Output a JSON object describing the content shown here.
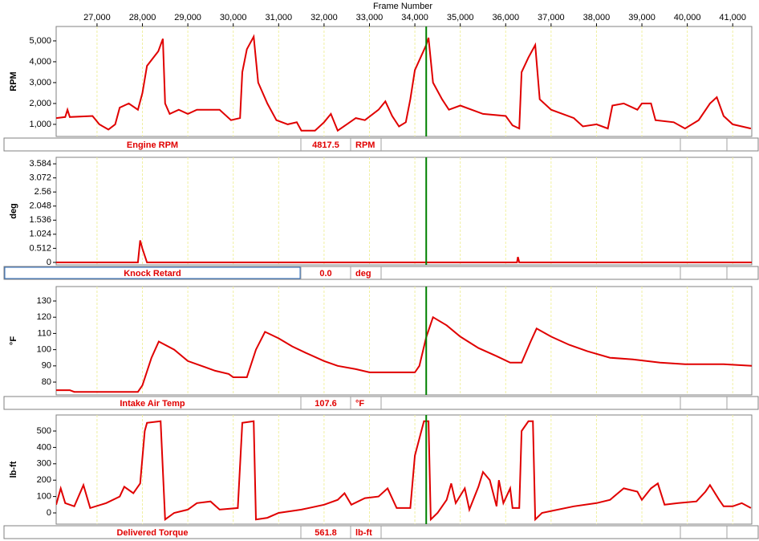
{
  "chart_data": [
    {
      "type": "line",
      "title": "Frame Number",
      "ylabel": "RPM",
      "cursor": 34250,
      "xlim": [
        26100,
        41420
      ],
      "xticks": [
        {
          "value": 27000,
          "label": "27,000"
        },
        {
          "value": 28000,
          "label": "28,000"
        },
        {
          "value": 29000,
          "label": "29,000"
        },
        {
          "value": 30000,
          "label": "30,000"
        },
        {
          "value": 31000,
          "label": "31,000"
        },
        {
          "value": 32000,
          "label": "32,000"
        },
        {
          "value": 33000,
          "label": "33,000"
        },
        {
          "value": 34000,
          "label": "34,000"
        },
        {
          "value": 35000,
          "label": "35,000"
        },
        {
          "value": 36000,
          "label": "36,000"
        },
        {
          "value": 37000,
          "label": "37,000"
        },
        {
          "value": 38000,
          "label": "38,000"
        },
        {
          "value": 39000,
          "label": "39,000"
        },
        {
          "value": 40000,
          "label": "40,000"
        },
        {
          "value": 41000,
          "label": "41,000"
        }
      ],
      "ylim": [
        420,
        5690
      ],
      "yticks": [
        {
          "value": 1000,
          "label": "1,000"
        },
        {
          "value": 2000,
          "label": "2,000"
        },
        {
          "value": 3000,
          "label": "3,000"
        },
        {
          "value": 4000,
          "label": "4,000"
        },
        {
          "value": 5000,
          "label": "5,000"
        }
      ],
      "x": [
        26100,
        26300,
        26350,
        26400,
        26900,
        27050,
        27250,
        27400,
        27500,
        27700,
        27900,
        28000,
        28100,
        28350,
        28450,
        28500,
        28600,
        28800,
        29000,
        29200,
        29700,
        29950,
        30150,
        30200,
        30300,
        30450,
        30550,
        30750,
        30950,
        31200,
        31400,
        31500,
        31800,
        32000,
        32150,
        32300,
        32500,
        32700,
        32900,
        33200,
        33350,
        33500,
        33650,
        33800,
        33900,
        34000,
        34250,
        34300,
        34400,
        34600,
        34750,
        35000,
        35500,
        36000,
        36150,
        36300,
        36350,
        36500,
        36650,
        36750,
        37000,
        37500,
        37700,
        38000,
        38250,
        38350,
        38600,
        38900,
        39000,
        39200,
        39300,
        39700,
        39950,
        40250,
        40500,
        40650,
        40800,
        41000,
        41200,
        41400
      ],
      "series": [
        {
          "name": "Engine RPM",
          "color": "#e00000",
          "readout": "4817.5",
          "values": [
            1300,
            1350,
            1700,
            1350,
            1400,
            1000,
            750,
            1000,
            1800,
            2000,
            1700,
            2500,
            3800,
            4500,
            5100,
            2000,
            1500,
            1700,
            1500,
            1700,
            1700,
            1200,
            1300,
            3500,
            4600,
            5200,
            3000,
            2000,
            1200,
            1000,
            1100,
            700,
            700,
            1100,
            1500,
            700,
            1000,
            1300,
            1200,
            1700,
            2100,
            1400,
            900,
            1100,
            2200,
            3600,
            4800,
            5150,
            3000,
            2200,
            1700,
            1900,
            1500,
            1400,
            950,
            800,
            3500,
            4200,
            4800,
            2200,
            1700,
            1300,
            900,
            1000,
            800,
            1900,
            2000,
            1700,
            2000,
            2000,
            1200,
            1100,
            800,
            1200,
            2000,
            2300,
            1400,
            1000,
            900,
            800
          ]
        }
      ]
    },
    {
      "type": "line",
      "ylabel": "deg",
      "cursor": 34250,
      "xlim": [
        26100,
        41420
      ],
      "ylim": [
        -0.09,
        3.82
      ],
      "yticks": [
        0,
        0.512,
        1.024,
        1.536,
        2.048,
        2.56,
        3.072,
        3.584
      ],
      "x": [
        26100,
        27900,
        27950,
        28000,
        28100,
        36250,
        36270,
        36300,
        41420
      ],
      "series": [
        {
          "name": "Knock Retard",
          "color": "#e00000",
          "readout": "0.0",
          "values": [
            0,
            0,
            0.8,
            0.5,
            0,
            0,
            0.2,
            0,
            0
          ]
        }
      ]
    },
    {
      "type": "line",
      "ylabel": "°F",
      "cursor": 34250,
      "xlim": [
        26100,
        41420
      ],
      "ylim": [
        72.1,
        138.9
      ],
      "yticks": [
        80,
        90,
        100,
        110,
        120,
        130
      ],
      "x": [
        26100,
        26400,
        26500,
        27900,
        28000,
        28200,
        28360,
        28700,
        29000,
        29300,
        29600,
        29900,
        30000,
        30300,
        30500,
        30700,
        31000,
        31300,
        31600,
        32000,
        32300,
        32700,
        33000,
        34000,
        34100,
        34250,
        34400,
        34700,
        35000,
        35400,
        35800,
        36100,
        36350,
        36550,
        36680,
        37000,
        37400,
        37800,
        38300,
        38800,
        39400,
        39950,
        40800,
        41420
      ],
      "series": [
        {
          "name": "Intake Air Temp",
          "color": "#e00000",
          "readout": "107.6",
          "values": [
            75,
            75,
            74,
            74,
            78,
            95,
            105,
            100,
            93,
            90,
            87,
            85,
            83,
            83,
            100,
            111,
            107,
            102,
            98,
            93,
            90,
            88,
            86,
            86,
            90,
            107.6,
            120,
            115,
            108,
            101,
            96,
            92,
            92,
            105,
            113,
            108,
            103,
            99,
            95,
            94,
            92,
            91,
            91,
            90
          ]
        }
      ]
    },
    {
      "type": "line",
      "ylabel": "lb-ft",
      "cursor": 34250,
      "xlim": [
        26100,
        41420
      ],
      "ylim": [
        -68.6,
        598
      ],
      "yticks": [
        0,
        100,
        200,
        300,
        400,
        500
      ],
      "x": [
        26100,
        26200,
        26300,
        26500,
        26700,
        26850,
        27200,
        27500,
        27600,
        27800,
        27950,
        28050,
        28100,
        28400,
        28500,
        28700,
        29000,
        29200,
        29500,
        29700,
        30100,
        30200,
        30450,
        30500,
        30750,
        31000,
        31500,
        32000,
        32300,
        32450,
        32600,
        32900,
        33200,
        33400,
        33600,
        33900,
        34000,
        34200,
        34300,
        34350,
        34500,
        34700,
        34800,
        34900,
        35100,
        35200,
        35400,
        35500,
        35650,
        35800,
        35850,
        35950,
        36100,
        36150,
        36300,
        36350,
        36500,
        36600,
        36650,
        36800,
        37500,
        38000,
        38300,
        38600,
        38900,
        39000,
        39200,
        39350,
        39500,
        39800,
        40200,
        40400,
        40500,
        40700,
        40800,
        41000,
        41200,
        41400
      ],
      "series": [
        {
          "name": "Delivered Torque",
          "color": "#e00000",
          "readout": "561.8",
          "values": [
            50,
            150,
            60,
            40,
            170,
            30,
            60,
            100,
            160,
            120,
            180,
            500,
            550,
            560,
            -40,
            0,
            20,
            60,
            70,
            20,
            30,
            550,
            560,
            -40,
            -30,
            0,
            20,
            50,
            80,
            120,
            50,
            90,
            100,
            150,
            30,
            30,
            350,
            560,
            560,
            -40,
            0,
            80,
            180,
            60,
            150,
            20,
            160,
            250,
            200,
            40,
            200,
            60,
            150,
            30,
            30,
            500,
            560,
            560,
            -40,
            0,
            40,
            60,
            80,
            150,
            130,
            80,
            150,
            180,
            50,
            60,
            70,
            130,
            170,
            80,
            40,
            40,
            60,
            30
          ]
        }
      ]
    }
  ]
}
